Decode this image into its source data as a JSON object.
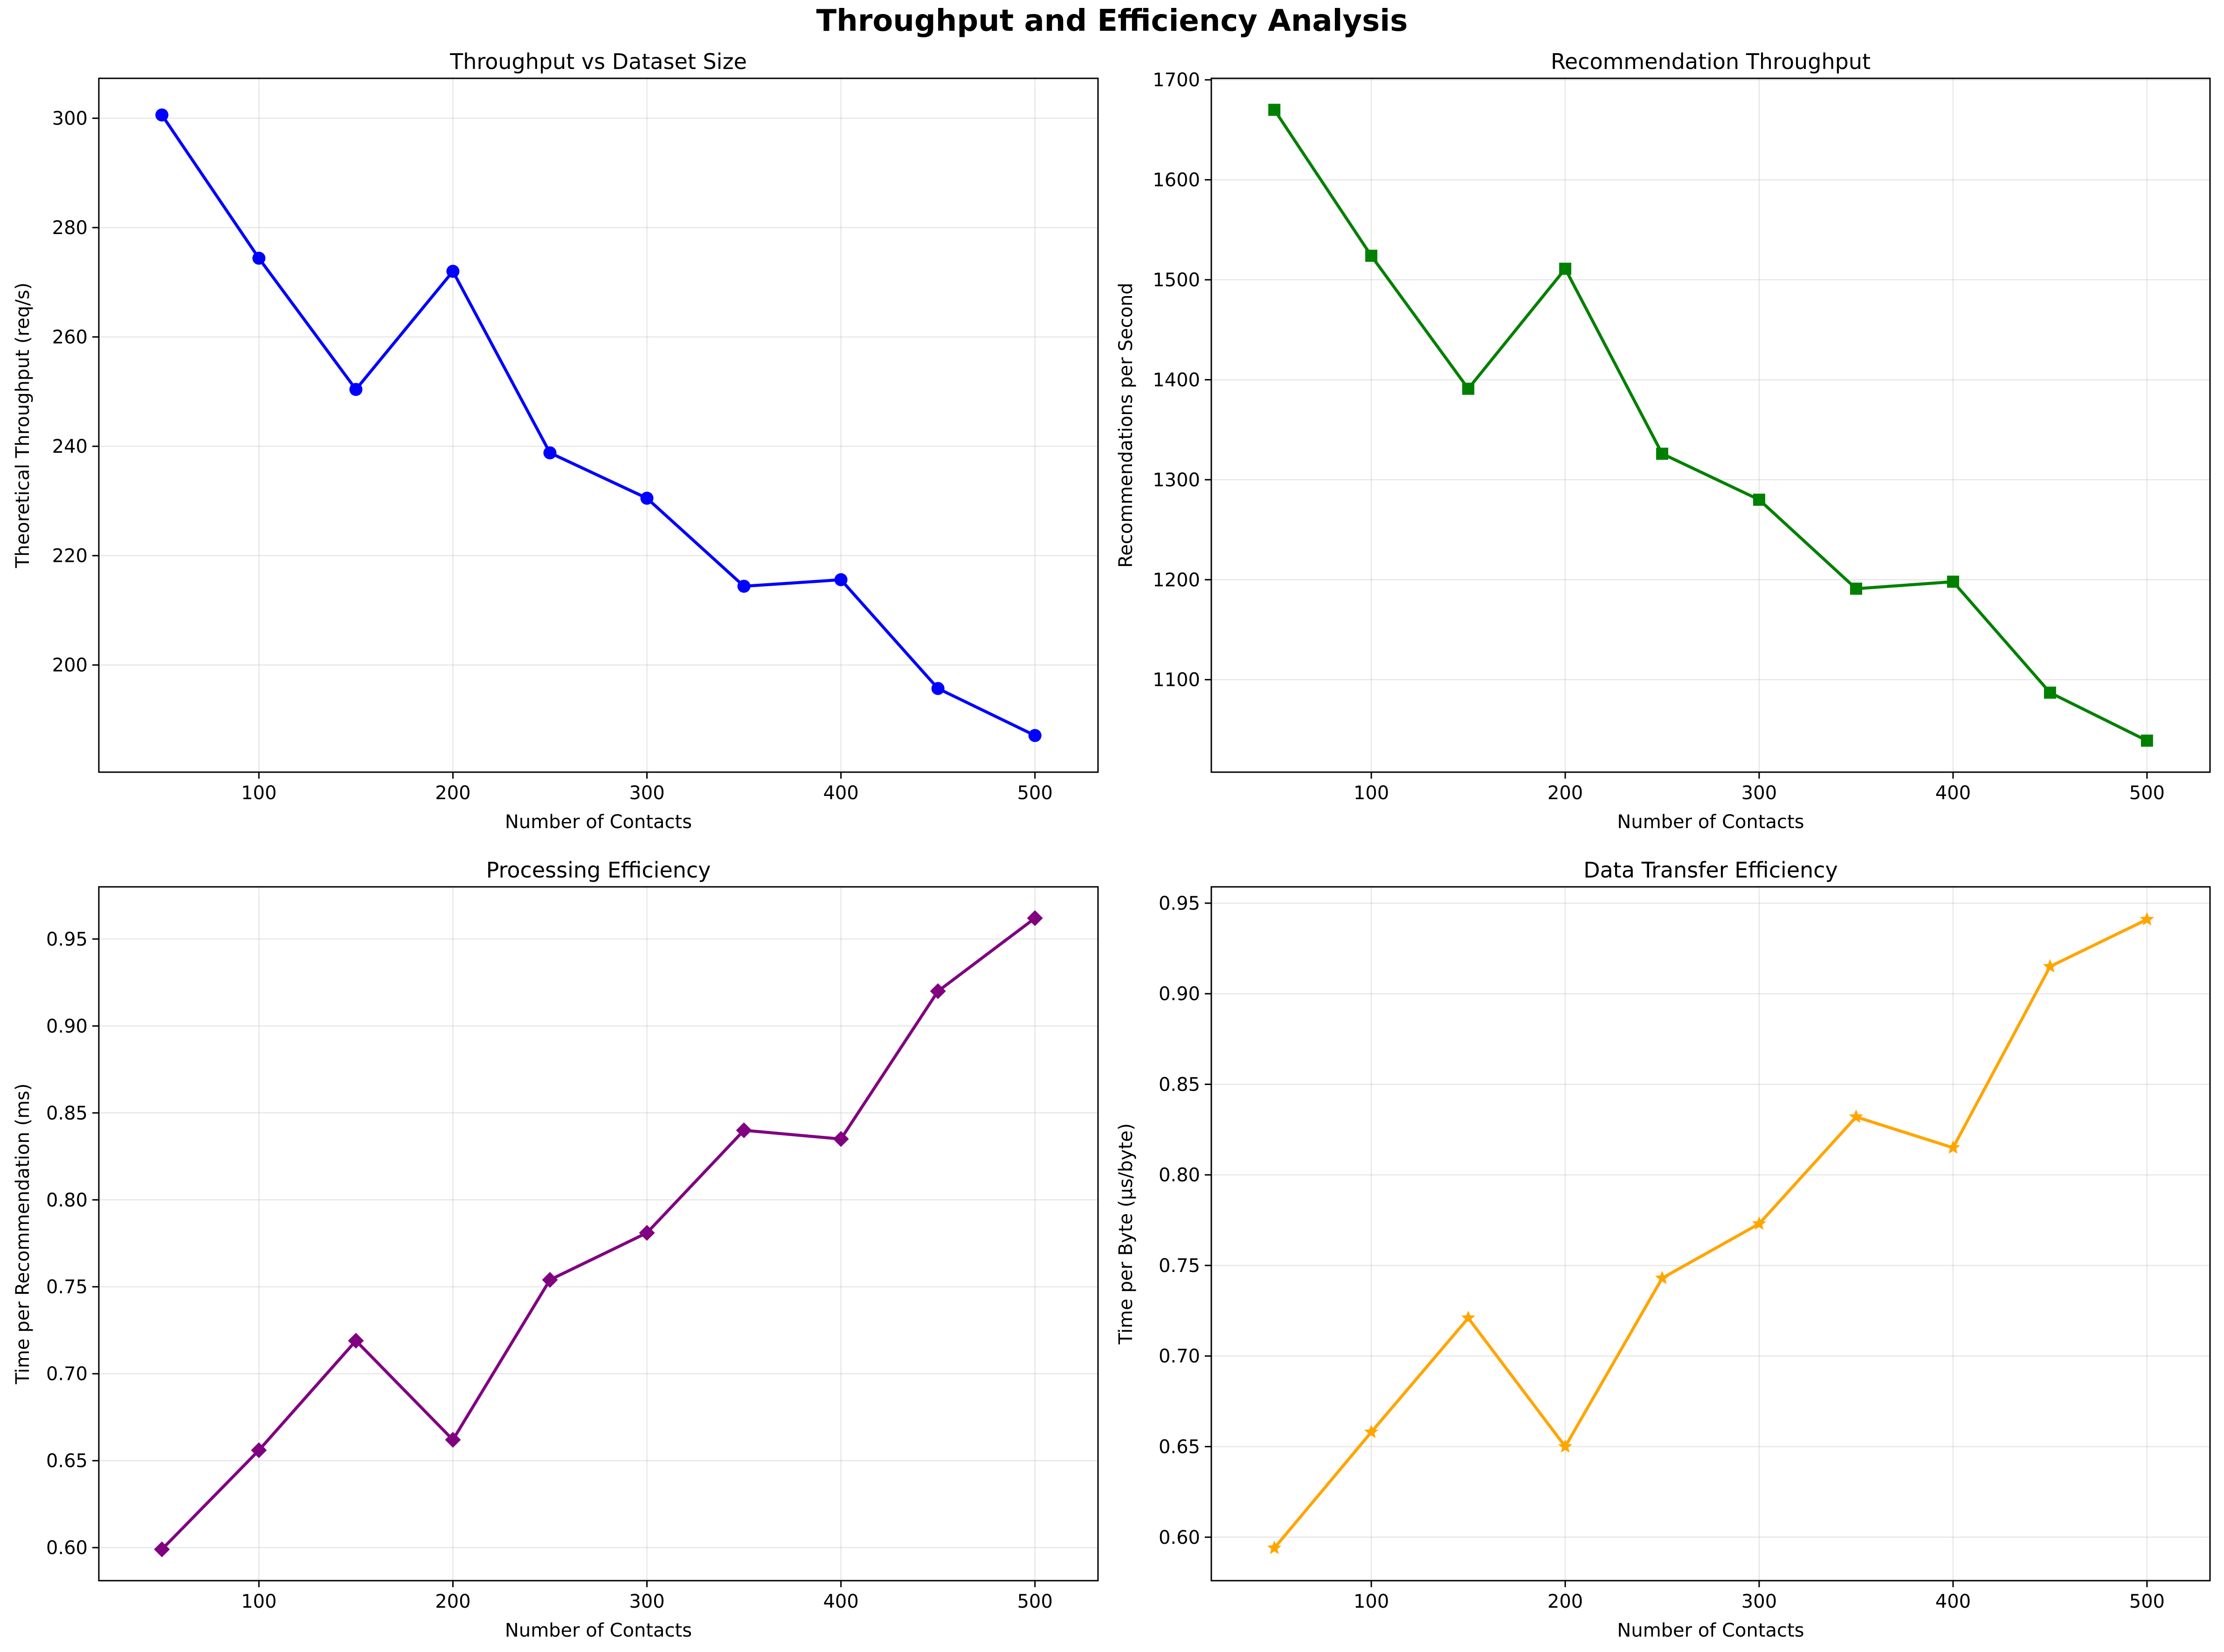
{
  "figure_title": "Throughput and Efficiency Analysis",
  "chart_data": [
    {
      "type": "line",
      "title": "Throughput vs Dataset Size",
      "xlabel": "Number of Contacts",
      "ylabel": "Theoretical Throughput (req/s)",
      "x": [
        50,
        100,
        150,
        200,
        250,
        300,
        350,
        400,
        450,
        500
      ],
      "series": [
        {
          "values": [
            300.6,
            274.4,
            250.4,
            272.0,
            238.8,
            230.5,
            214.4,
            215.6,
            195.7,
            187.1
          ],
          "color": "#0000ff",
          "marker": "circle"
        }
      ],
      "xlim": [
        17.5,
        532.5
      ],
      "ylim": [
        180.4,
        307.3
      ],
      "xticks": [
        100,
        200,
        300,
        400,
        500
      ],
      "xtick_labels": [
        "100",
        "200",
        "300",
        "400",
        "500"
      ],
      "yticks": [
        200,
        220,
        240,
        260,
        280,
        300
      ],
      "ytick_labels": [
        "200",
        "220",
        "240",
        "260",
        "280",
        "300"
      ],
      "grid": true
    },
    {
      "type": "line",
      "title": "Recommendation Throughput",
      "xlabel": "Number of Contacts",
      "ylabel": "Recommendations per Second",
      "x": [
        50,
        100,
        150,
        200,
        250,
        300,
        350,
        400,
        450,
        500
      ],
      "series": [
        {
          "values": [
            1670,
            1524,
            1391,
            1511,
            1326,
            1280,
            1191,
            1198,
            1087,
            1039
          ],
          "color": "#008000",
          "marker": "square"
        }
      ],
      "xlim": [
        17.5,
        532.5
      ],
      "ylim": [
        1007.5,
        1701.5
      ],
      "xticks": [
        100,
        200,
        300,
        400,
        500
      ],
      "xtick_labels": [
        "100",
        "200",
        "300",
        "400",
        "500"
      ],
      "yticks": [
        1100,
        1200,
        1300,
        1400,
        1500,
        1600,
        1700
      ],
      "ytick_labels": [
        "1100",
        "1200",
        "1300",
        "1400",
        "1500",
        "1600",
        "1700"
      ],
      "grid": true
    },
    {
      "type": "line",
      "title": "Processing Efficiency",
      "xlabel": "Number of Contacts",
      "ylabel": "Time per Recommendation (ms)",
      "x": [
        50,
        100,
        150,
        200,
        250,
        300,
        350,
        400,
        450,
        500
      ],
      "series": [
        {
          "values": [
            0.599,
            0.656,
            0.719,
            0.662,
            0.754,
            0.781,
            0.84,
            0.835,
            0.92,
            0.962
          ],
          "color": "#800080",
          "marker": "diamond"
        }
      ],
      "xlim": [
        17.5,
        532.5
      ],
      "ylim": [
        0.581,
        0.98
      ],
      "xticks": [
        100,
        200,
        300,
        400,
        500
      ],
      "xtick_labels": [
        "100",
        "200",
        "300",
        "400",
        "500"
      ],
      "yticks": [
        0.6,
        0.65,
        0.7,
        0.75,
        0.8,
        0.85,
        0.9,
        0.95
      ],
      "ytick_labels": [
        "0.60",
        "0.65",
        "0.70",
        "0.75",
        "0.80",
        "0.85",
        "0.90",
        "0.95"
      ],
      "grid": true
    },
    {
      "type": "line",
      "title": "Data Transfer Efficiency",
      "xlabel": "Number of Contacts",
      "ylabel": "Time per Byte (μs/byte)",
      "x": [
        50,
        100,
        150,
        200,
        250,
        300,
        350,
        400,
        450,
        500
      ],
      "series": [
        {
          "values": [
            0.594,
            0.658,
            0.721,
            0.65,
            0.743,
            0.773,
            0.832,
            0.815,
            0.915,
            0.941
          ],
          "color": "#ffa500",
          "marker": "star"
        }
      ],
      "xlim": [
        17.5,
        532.5
      ],
      "ylim": [
        0.576,
        0.959
      ],
      "xticks": [
        100,
        200,
        300,
        400,
        500
      ],
      "xtick_labels": [
        "100",
        "200",
        "300",
        "400",
        "500"
      ],
      "yticks": [
        0.6,
        0.65,
        0.7,
        0.75,
        0.8,
        0.85,
        0.9,
        0.95
      ],
      "ytick_labels": [
        "0.60",
        "0.65",
        "0.70",
        "0.75",
        "0.80",
        "0.85",
        "0.90",
        "0.95"
      ],
      "grid": true
    }
  ]
}
